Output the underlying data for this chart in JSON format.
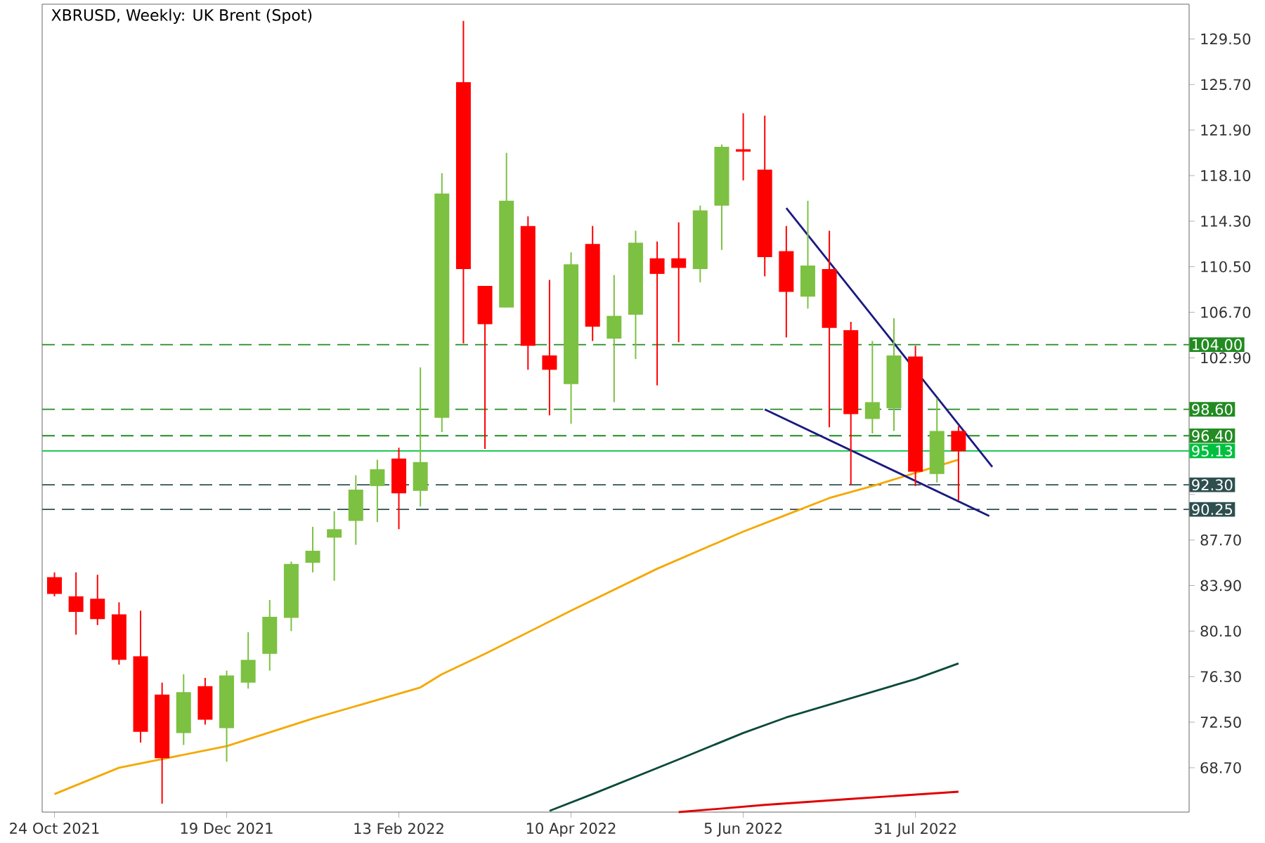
{
  "chart_data": {
    "type": "candlestick",
    "title": "XBRUSD, Weekly:  UK Brent (Spot)",
    "x": [
      "2021-10-24",
      "2021-10-31",
      "2021-11-07",
      "2021-11-14",
      "2021-11-21",
      "2021-11-28",
      "2021-12-05",
      "2021-12-12",
      "2021-12-19",
      "2021-12-26",
      "2022-01-02",
      "2022-01-09",
      "2022-01-16",
      "2022-01-23",
      "2022-01-30",
      "2022-02-06",
      "2022-02-13",
      "2022-02-20",
      "2022-02-27",
      "2022-03-06",
      "2022-03-13",
      "2022-03-20",
      "2022-03-27",
      "2022-04-03",
      "2022-04-10",
      "2022-04-17",
      "2022-04-24",
      "2022-05-01",
      "2022-05-08",
      "2022-05-15",
      "2022-05-22",
      "2022-05-29",
      "2022-06-05",
      "2022-06-12",
      "2022-06-19",
      "2022-06-26",
      "2022-07-03",
      "2022-07-10",
      "2022-07-17",
      "2022-07-24",
      "2022-07-31",
      "2022-08-07",
      "2022-08-14"
    ],
    "ohlc": [
      [
        84.6,
        85.0,
        83.0,
        83.2
      ],
      [
        83.0,
        85.0,
        79.8,
        81.7
      ],
      [
        82.8,
        84.8,
        80.6,
        81.1
      ],
      [
        81.5,
        82.5,
        77.3,
        77.7
      ],
      [
        78.0,
        81.8,
        70.8,
        71.7
      ],
      [
        74.8,
        75.8,
        65.7,
        69.5
      ],
      [
        71.6,
        76.5,
        70.6,
        75.0
      ],
      [
        75.5,
        76.2,
        72.3,
        72.7
      ],
      [
        72.0,
        76.8,
        69.2,
        76.4
      ],
      [
        75.8,
        80.0,
        75.3,
        77.7
      ],
      [
        78.2,
        82.7,
        76.8,
        81.3
      ],
      [
        81.2,
        85.9,
        80.1,
        85.7
      ],
      [
        85.8,
        88.8,
        85.0,
        86.8
      ],
      [
        87.9,
        90.1,
        84.3,
        88.6
      ],
      [
        89.3,
        93.1,
        87.3,
        91.9
      ],
      [
        92.2,
        94.4,
        89.2,
        93.6
      ],
      [
        94.5,
        95.4,
        88.6,
        91.6
      ],
      [
        91.8,
        102.1,
        90.5,
        94.2
      ],
      [
        97.9,
        118.3,
        96.7,
        116.6
      ],
      [
        125.9,
        131.0,
        104.1,
        110.3
      ],
      [
        108.9,
        108.9,
        95.3,
        105.7
      ],
      [
        107.1,
        120.0,
        107.1,
        116.0
      ],
      [
        113.9,
        114.7,
        101.9,
        103.9
      ],
      [
        103.1,
        109.4,
        98.1,
        101.9
      ],
      [
        100.7,
        111.7,
        97.4,
        110.7
      ],
      [
        112.4,
        113.9,
        104.3,
        105.5
      ],
      [
        104.5,
        109.8,
        99.2,
        106.4
      ],
      [
        106.5,
        113.5,
        102.8,
        112.5
      ],
      [
        111.2,
        112.6,
        100.6,
        109.9
      ],
      [
        111.2,
        114.2,
        104.2,
        110.4
      ],
      [
        110.3,
        115.6,
        109.2,
        115.2
      ],
      [
        115.6,
        120.7,
        111.9,
        120.5
      ],
      [
        120.3,
        123.3,
        117.7,
        120.1
      ],
      [
        118.6,
        123.1,
        109.7,
        111.3
      ],
      [
        111.8,
        113.9,
        104.6,
        108.4
      ],
      [
        108.0,
        116.0,
        107.0,
        110.6
      ],
      [
        110.3,
        113.5,
        97.1,
        105.4
      ],
      [
        105.2,
        105.9,
        92.3,
        98.2
      ],
      [
        97.8,
        104.3,
        96.6,
        99.2
      ],
      [
        98.7,
        106.2,
        96.8,
        103.1
      ],
      [
        103.0,
        103.9,
        92.2,
        93.4
      ],
      [
        93.2,
        99.5,
        92.5,
        96.8
      ],
      [
        96.8,
        97.2,
        91.0,
        95.1
      ]
    ],
    "colors": [
      "#ff0000",
      "#ff0000",
      "#ff0000",
      "#ff0000",
      "#ff0000",
      "#ff0000",
      "#7cc142",
      "#ff0000",
      "#7cc142",
      "#7cc142",
      "#7cc142",
      "#7cc142",
      "#7cc142",
      "#7cc142",
      "#7cc142",
      "#7cc142",
      "#ff0000",
      "#7cc142",
      "#7cc142",
      "#ff0000",
      "#ff0000",
      "#7cc142",
      "#ff0000",
      "#ff0000",
      "#7cc142",
      "#ff0000",
      "#7cc142",
      "#7cc142",
      "#ff0000",
      "#ff0000",
      "#7cc142",
      "#7cc142",
      "#ff0000",
      "#ff0000",
      "#ff0000",
      "#7cc142",
      "#ff0000",
      "#ff0000",
      "#7cc142",
      "#7cc142",
      "#ff0000",
      "#7cc142",
      "#ff0000"
    ],
    "series": [
      {
        "type": "line",
        "color": "#f5a800",
        "x": [
          "2021-10-24",
          "2021-11-14",
          "2021-12-19",
          "2022-01-16",
          "2022-02-20",
          "2022-02-27",
          "2022-03-13",
          "2022-04-10",
          "2022-05-08",
          "2022-06-05",
          "2022-06-19",
          "2022-07-03",
          "2022-07-17",
          "2022-07-31",
          "2022-08-14"
        ],
        "values": [
          66.5,
          68.7,
          70.5,
          72.8,
          75.4,
          76.5,
          78.2,
          81.8,
          85.3,
          88.4,
          89.8,
          91.2,
          92.2,
          93.3,
          94.4
        ]
      },
      {
        "type": "line",
        "color": "#0b4a3a",
        "x": [
          "2022-04-03",
          "2022-04-17",
          "2022-05-15",
          "2022-06-05",
          "2022-06-19",
          "2022-07-10",
          "2022-07-31",
          "2022-08-14"
        ],
        "values": [
          65.1,
          66.5,
          69.4,
          71.6,
          72.9,
          74.5,
          76.1,
          77.4
        ]
      },
      {
        "type": "line",
        "color": "#e00000",
        "x": [
          "2022-05-15",
          "2022-06-12",
          "2022-07-10",
          "2022-08-14"
        ],
        "values": [
          65.0,
          65.6,
          66.1,
          66.7
        ]
      },
      {
        "type": "line",
        "color": "#1a1a80",
        "x": [
          "2022-06-19",
          "2022-08-25"
        ],
        "values": [
          115.4,
          93.8
        ]
      },
      {
        "type": "line",
        "color": "#1a1a80",
        "x": [
          "2022-06-12",
          "2022-08-24"
        ],
        "values": [
          98.6,
          89.7
        ]
      }
    ],
    "ref_lines": [
      {
        "axis": "y",
        "value": 104.0,
        "label": "104.00",
        "color": "#228b22",
        "line_style": "dashed"
      },
      {
        "axis": "y",
        "value": 98.6,
        "label": "98.60",
        "color": "#228b22",
        "line_style": "dashed"
      },
      {
        "axis": "y",
        "value": 96.4,
        "label": "96.40",
        "color": "#228b22",
        "line_style": "dashed"
      },
      {
        "axis": "y",
        "value": 95.13,
        "label": "95.13",
        "color": "#00c040",
        "line_style": "solid"
      },
      {
        "axis": "y",
        "value": 92.3,
        "label": "92.30",
        "color": "#2f4f4f",
        "line_style": "dashed"
      },
      {
        "axis": "y",
        "value": 90.25,
        "label": "90.25",
        "color": "#2f4f4f",
        "line_style": "dashed"
      }
    ],
    "xlim": [
      "2021-10-20",
      "2022-10-28"
    ],
    "xticks": [
      {
        "value": "2021-10-24",
        "label": "24 Oct 2021"
      },
      {
        "value": "2021-12-19",
        "label": "19 Dec 2021"
      },
      {
        "value": "2022-02-13",
        "label": "13 Feb 2022"
      },
      {
        "value": "2022-04-10",
        "label": "10 Apr 2022"
      },
      {
        "value": "2022-06-05",
        "label": "5 Jun 2022"
      },
      {
        "value": "2022-07-31",
        "label": "31 Jul 2022"
      }
    ],
    "ylim": [
      65.0,
      132.4
    ],
    "yticks": [
      {
        "value": 129.5,
        "label": "129.50"
      },
      {
        "value": 125.7,
        "label": "125.70"
      },
      {
        "value": 121.9,
        "label": "121.90"
      },
      {
        "value": 118.1,
        "label": "118.10"
      },
      {
        "value": 114.3,
        "label": "114.30"
      },
      {
        "value": 110.5,
        "label": "110.50"
      },
      {
        "value": 106.7,
        "label": "106.70"
      },
      {
        "value": 102.9,
        "label": "102.90"
      },
      {
        "value": 99.1,
        "label": null
      },
      {
        "value": 95.3,
        "label": null
      },
      {
        "value": 91.5,
        "label": null
      },
      {
        "value": 87.7,
        "label": "87.70"
      },
      {
        "value": 83.9,
        "label": "83.90"
      },
      {
        "value": 80.1,
        "label": "80.10"
      },
      {
        "value": 76.3,
        "label": "76.30"
      },
      {
        "value": 72.5,
        "label": "72.50"
      },
      {
        "value": 68.7,
        "label": "68.70"
      }
    ]
  }
}
